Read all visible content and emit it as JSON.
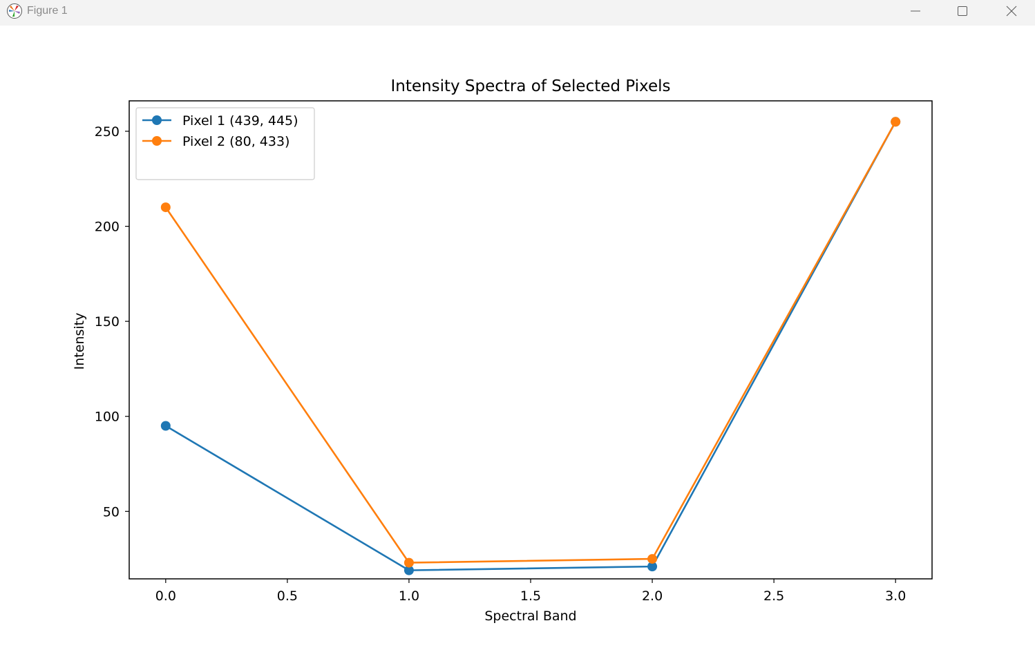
{
  "window": {
    "title": "Figure 1",
    "icons": {
      "app": "matplotlib-logo-icon",
      "minimize": "minimize-icon",
      "maximize": "maximize-icon",
      "close": "close-icon"
    }
  },
  "chart_data": {
    "type": "line",
    "title": "Intensity Spectra of Selected Pixels",
    "xlabel": "Spectral Band",
    "ylabel": "Intensity",
    "x": [
      0,
      1,
      2,
      3
    ],
    "xlim": [
      -0.15,
      3.15
    ],
    "ylim": [
      14.5,
      266
    ],
    "xticks": [
      0.0,
      0.5,
      1.0,
      1.5,
      2.0,
      2.5,
      3.0
    ],
    "xtick_labels": [
      "0.0",
      "0.5",
      "1.0",
      "1.5",
      "2.0",
      "2.5",
      "3.0"
    ],
    "yticks": [
      50,
      100,
      150,
      200,
      250
    ],
    "ytick_labels": [
      "50",
      "100",
      "150",
      "200",
      "250"
    ],
    "grid": false,
    "legend_position": "top-left",
    "markers": "circle",
    "series": [
      {
        "name": "Pixel 1 (439, 445)",
        "color": "#1f77b4",
        "values": [
          95,
          19,
          21,
          255
        ]
      },
      {
        "name": "Pixel 2 (80, 433)",
        "color": "#ff7f0e",
        "values": [
          210,
          23,
          25,
          255
        ]
      }
    ]
  }
}
